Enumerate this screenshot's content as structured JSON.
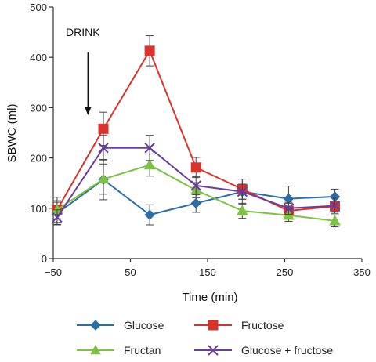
{
  "chart_data": {
    "type": "line",
    "xlabel": "Time (min)",
    "ylabel": "SBWC (ml)",
    "xlim": [
      -50,
      350
    ],
    "ylim": [
      0,
      500
    ],
    "x_ticks": [
      -50,
      50,
      150,
      250,
      350
    ],
    "y_ticks": [
      0,
      100,
      200,
      300,
      400,
      500
    ],
    "x_tick_labels": [
      "−50",
      "50",
      "150",
      "250",
      "350"
    ],
    "y_tick_labels": [
      "0",
      "100",
      "200",
      "300",
      "400",
      "500"
    ],
    "grid": false,
    "legend_position": "bottom",
    "annotation": {
      "text": "DRINK",
      "x": -5,
      "y_top": 410,
      "y_bottom": 285
    },
    "x": [
      -45,
      15,
      75,
      135,
      195,
      255,
      315
    ],
    "series": [
      {
        "name": "Glucose",
        "color": "#2b6ea8",
        "marker": "diamond",
        "values": [
          90,
          157,
          87,
          110,
          133,
          119,
          123
        ],
        "errors": [
          22,
          40,
          20,
          18,
          25,
          25,
          15
        ]
      },
      {
        "name": "Fructose",
        "color": "#d9342b",
        "marker": "square",
        "values": [
          97,
          258,
          413,
          181,
          138,
          95,
          104
        ],
        "errors": [
          25,
          33,
          30,
          20,
          20,
          15,
          10
        ]
      },
      {
        "name": "Fructan",
        "color": "#7dc242",
        "marker": "triangle",
        "values": [
          97,
          158,
          186,
          136,
          95,
          86,
          75
        ],
        "errors": [
          18,
          30,
          22,
          15,
          15,
          12,
          12
        ]
      },
      {
        "name": "Glucose + fructose",
        "color": "#6a3d9a",
        "marker": "x",
        "values": [
          82,
          220,
          220,
          145,
          133,
          100,
          105
        ],
        "errors": [
          15,
          25,
          25,
          18,
          15,
          12,
          15
        ]
      }
    ]
  }
}
